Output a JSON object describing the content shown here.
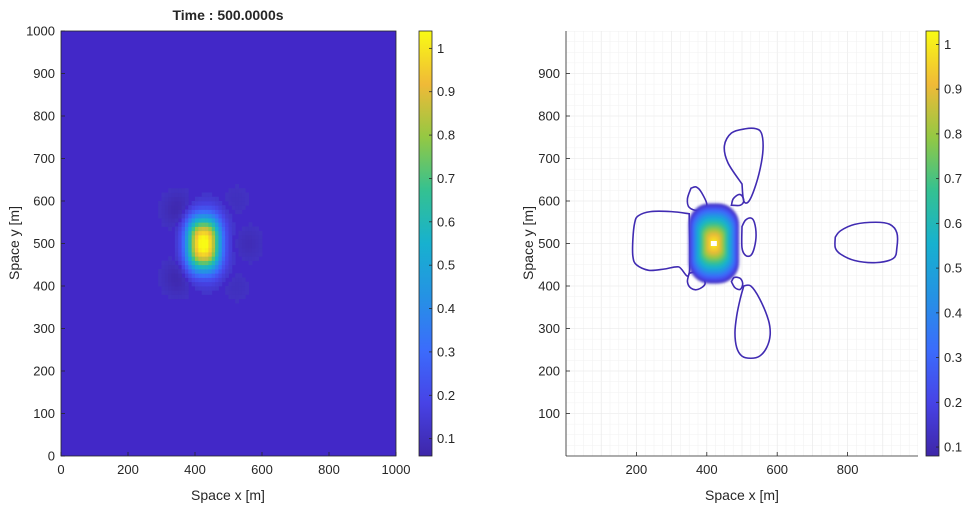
{
  "chart_data": [
    {
      "type": "heatmap",
      "title": "Time : 500.0000s",
      "xlabel": "Space x [m]",
      "ylabel": "Space y [m]",
      "xlim": [
        0,
        1000
      ],
      "ylim": [
        0,
        1000
      ],
      "xticks": [
        0,
        200,
        400,
        600,
        800,
        1000
      ],
      "yticks": [
        0,
        100,
        200,
        300,
        400,
        500,
        600,
        700,
        800,
        900,
        1000
      ],
      "colorbar": {
        "limits": [
          0.06,
          1.04
        ],
        "ticks": [
          0.1,
          0.2,
          0.3,
          0.4,
          0.5,
          0.6,
          0.7,
          0.8,
          0.9,
          1
        ]
      },
      "colormap": "parula",
      "background_value": 0.12,
      "peak": {
        "x": 425,
        "y": 500,
        "value": 1.04
      },
      "grid": false
    },
    {
      "type": "contour",
      "title": "",
      "xlabel": "Space x [m]",
      "ylabel": "Space y [m]",
      "xlim": [
        0,
        1000
      ],
      "ylim": [
        0,
        1000
      ],
      "xticks": [
        200,
        400,
        600,
        800
      ],
      "yticks": [
        100,
        200,
        300,
        400,
        500,
        600,
        700,
        800,
        900
      ],
      "colorbar": {
        "limits": [
          0.08,
          1.03
        ],
        "ticks": [
          0.1,
          0.2,
          0.3,
          0.4,
          0.5,
          0.6,
          0.7,
          0.8,
          0.9,
          1
        ]
      },
      "colormap": "parula",
      "grid": true,
      "center": {
        "x": 420,
        "y": 500
      },
      "outer_contours": [
        {
          "level": 0.1,
          "points": [
            [
              500,
              640
            ],
            [
              460,
              690
            ],
            [
              450,
              730
            ],
            [
              470,
              760
            ],
            [
              510,
              770
            ],
            [
              540,
              770
            ],
            [
              555,
              760
            ],
            [
              560,
              730
            ],
            [
              555,
              690
            ],
            [
              540,
              640
            ],
            [
              520,
              600
            ],
            [
              505,
              600
            ],
            [
              500,
              640
            ]
          ]
        },
        {
          "level": 0.1,
          "points": [
            [
              505,
              400
            ],
            [
              525,
              400
            ],
            [
              550,
              370
            ],
            [
              575,
              320
            ],
            [
              580,
              285
            ],
            [
              570,
              255
            ],
            [
              550,
              235
            ],
            [
              525,
              230
            ],
            [
              500,
              235
            ],
            [
              485,
              255
            ],
            [
              480,
              290
            ],
            [
              485,
              330
            ],
            [
              495,
              370
            ],
            [
              505,
              400
            ]
          ]
        },
        {
          "level": 0.1,
          "points": [
            [
              350,
              570
            ],
            [
              300,
              575
            ],
            [
              240,
              575
            ],
            [
              205,
              565
            ],
            [
              195,
              548
            ],
            [
              190,
              510
            ],
            [
              190,
              470
            ],
            [
              200,
              450
            ],
            [
              235,
              437
            ],
            [
              280,
              440
            ],
            [
              320,
              445
            ],
            [
              350,
              430
            ],
            [
              350,
              570
            ]
          ]
        },
        {
          "level": 0.1,
          "points": [
            [
              765,
              515
            ],
            [
              780,
              530
            ],
            [
              820,
              545
            ],
            [
              880,
              550
            ],
            [
              920,
              545
            ],
            [
              940,
              525
            ],
            [
              940,
              490
            ],
            [
              930,
              465
            ],
            [
              880,
              455
            ],
            [
              820,
              460
            ],
            [
              780,
              475
            ],
            [
              765,
              490
            ],
            [
              765,
              515
            ]
          ]
        },
        {
          "level": 0.1,
          "points": [
            [
              355,
              630
            ],
            [
              345,
              605
            ],
            [
              350,
              585
            ],
            [
              375,
              578
            ],
            [
              400,
              590
            ],
            [
              385,
              620
            ],
            [
              370,
              633
            ],
            [
              355,
              630
            ]
          ]
        },
        {
          "level": 0.1,
          "points": [
            [
              470,
              590
            ],
            [
              475,
              605
            ],
            [
              490,
              615
            ],
            [
              500,
              612
            ],
            [
              505,
              600
            ],
            [
              495,
              590
            ],
            [
              470,
              590
            ]
          ]
        },
        {
          "level": 0.1,
          "points": [
            [
              500,
              540
            ],
            [
              510,
              555
            ],
            [
              525,
              560
            ],
            [
              535,
              550
            ],
            [
              540,
              520
            ],
            [
              535,
              490
            ],
            [
              525,
              472
            ],
            [
              510,
              472
            ],
            [
              500,
              490
            ],
            [
              500,
              540
            ]
          ]
        },
        {
          "level": 0.1,
          "points": [
            [
              350,
              430
            ],
            [
              345,
              410
            ],
            [
              355,
              395
            ],
            [
              375,
              392
            ],
            [
              395,
              405
            ],
            [
              385,
              425
            ],
            [
              365,
              432
            ],
            [
              350,
              430
            ]
          ]
        },
        {
          "level": 0.1,
          "points": [
            [
              470,
              410
            ],
            [
              480,
              396
            ],
            [
              495,
              392
            ],
            [
              502,
              405
            ],
            [
              495,
              418
            ],
            [
              478,
              420
            ],
            [
              470,
              410
            ]
          ]
        }
      ],
      "core_levels": [
        0.12,
        0.15,
        0.2,
        0.25,
        0.3,
        0.35,
        0.4,
        0.45,
        0.5,
        0.55,
        0.6,
        0.65,
        0.7,
        0.75,
        0.8,
        0.85,
        0.9,
        0.95,
        1.0
      ]
    }
  ]
}
